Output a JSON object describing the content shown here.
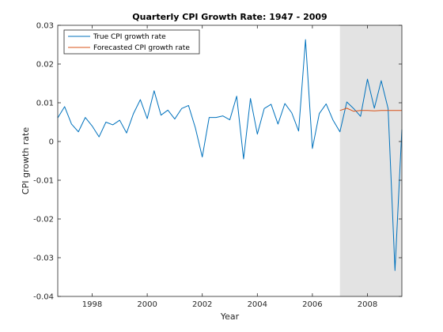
{
  "chart_data": {
    "type": "line",
    "title": "Quarterly CPI Growth Rate: 1947 - 2009",
    "xlabel": "Year",
    "ylabel": "CPI growth rate",
    "xlim": [
      1996.75,
      2009.25
    ],
    "ylim": [
      -0.04,
      0.03
    ],
    "x_ticks": [
      1998,
      2000,
      2002,
      2004,
      2006,
      2008
    ],
    "y_ticks": [
      -0.04,
      -0.03,
      -0.02,
      -0.01,
      0,
      0.01,
      0.02,
      0.03
    ],
    "y_tick_labels": [
      "-0.04",
      "-0.03",
      "-0.02",
      "-0.01",
      "0",
      "0.01",
      "0.02",
      "0.03"
    ],
    "grid": false,
    "legend_position": "top-left",
    "shaded_region": {
      "x_start": 2007.0,
      "x_end": 2009.25,
      "color": "#e3e3e3"
    },
    "series": [
      {
        "name": "True CPI growth rate",
        "color": "#0072bd",
        "x": [
          1996.75,
          1997.0,
          1997.25,
          1997.5,
          1997.75,
          1998.0,
          1998.25,
          1998.5,
          1998.75,
          1999.0,
          1999.25,
          1999.5,
          1999.75,
          2000.0,
          2000.25,
          2000.5,
          2000.75,
          2001.0,
          2001.25,
          2001.5,
          2001.75,
          2002.0,
          2002.25,
          2002.5,
          2002.75,
          2003.0,
          2003.25,
          2003.5,
          2003.75,
          2004.0,
          2004.25,
          2004.5,
          2004.75,
          2005.0,
          2005.25,
          2005.5,
          2005.75,
          2006.0,
          2006.25,
          2006.5,
          2006.75,
          2007.0,
          2007.25,
          2007.5,
          2007.75,
          2008.0,
          2008.25,
          2008.5,
          2008.75,
          2009.0,
          2009.25
        ],
        "values": [
          0.0061,
          0.009,
          0.0045,
          0.0025,
          0.0062,
          0.004,
          0.0012,
          0.005,
          0.0043,
          0.0055,
          0.0022,
          0.0072,
          0.0108,
          0.0059,
          0.0131,
          0.0068,
          0.0081,
          0.0058,
          0.0085,
          0.0093,
          0.0035,
          -0.004,
          0.0062,
          0.0062,
          0.0066,
          0.0056,
          0.0117,
          -0.0045,
          0.0111,
          0.0019,
          0.0085,
          0.0096,
          0.0045,
          0.0098,
          0.0074,
          0.0027,
          0.0263,
          -0.0018,
          0.0072,
          0.0097,
          0.0055,
          0.0025,
          0.0102,
          0.0085,
          0.0065,
          0.0161,
          0.0086,
          0.0157,
          0.0085,
          -0.0333,
          0.0031
        ]
      },
      {
        "name": "Forecasted CPI growth rate",
        "color": "#d95319",
        "x": [
          2007.0,
          2007.25,
          2007.5,
          2007.75,
          2008.0,
          2008.25,
          2008.5,
          2008.75,
          2009.0,
          2009.25
        ],
        "values": [
          0.008,
          0.0086,
          0.0078,
          0.008,
          0.008,
          0.0079,
          0.008,
          0.008,
          0.008,
          0.008
        ]
      }
    ]
  }
}
